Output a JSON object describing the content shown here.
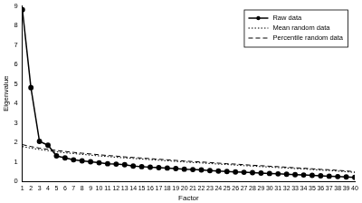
{
  "chart_data": {
    "type": "line",
    "x_label": "Factor",
    "y_label": "Eigenvalue",
    "categories": [
      1,
      2,
      3,
      4,
      5,
      6,
      7,
      8,
      9,
      10,
      11,
      12,
      13,
      14,
      15,
      16,
      17,
      18,
      19,
      20,
      21,
      22,
      23,
      24,
      25,
      26,
      27,
      28,
      29,
      30,
      31,
      32,
      33,
      34,
      35,
      36,
      37,
      38,
      39,
      40
    ],
    "series": [
      {
        "name": "Raw data",
        "color": "#000000",
        "marker": "circle",
        "line_style": "solid",
        "values": [
          8.8,
          4.8,
          2.05,
          1.85,
          1.3,
          1.2,
          1.1,
          1.05,
          1.0,
          0.95,
          0.9,
          0.88,
          0.85,
          0.78,
          0.75,
          0.72,
          0.7,
          0.68,
          0.65,
          0.62,
          0.6,
          0.58,
          0.55,
          0.52,
          0.5,
          0.48,
          0.46,
          0.44,
          0.42,
          0.4,
          0.38,
          0.36,
          0.34,
          0.32,
          0.3,
          0.28,
          0.26,
          0.24,
          0.22,
          0.2
        ]
      },
      {
        "name": "Mean random data",
        "color": "#000000",
        "marker": "none",
        "line_style": "dotted",
        "values": [
          1.78,
          1.7,
          1.63,
          1.57,
          1.51,
          1.46,
          1.42,
          1.38,
          1.34,
          1.3,
          1.27,
          1.23,
          1.2,
          1.17,
          1.14,
          1.11,
          1.08,
          1.05,
          1.02,
          0.99,
          0.96,
          0.94,
          0.91,
          0.88,
          0.86,
          0.83,
          0.8,
          0.78,
          0.75,
          0.73,
          0.7,
          0.68,
          0.65,
          0.63,
          0.6,
          0.57,
          0.55,
          0.52,
          0.49,
          0.45
        ]
      },
      {
        "name": "Percentile random data",
        "color": "#000000",
        "marker": "none",
        "line_style": "dashed",
        "values": [
          1.88,
          1.78,
          1.7,
          1.64,
          1.58,
          1.53,
          1.48,
          1.44,
          1.4,
          1.36,
          1.32,
          1.29,
          1.25,
          1.22,
          1.19,
          1.16,
          1.13,
          1.1,
          1.07,
          1.04,
          1.01,
          0.99,
          0.96,
          0.93,
          0.9,
          0.88,
          0.85,
          0.82,
          0.8,
          0.77,
          0.75,
          0.72,
          0.69,
          0.67,
          0.64,
          0.61,
          0.59,
          0.56,
          0.53,
          0.49
        ]
      }
    ],
    "ylim": [
      0,
      9
    ],
    "yticks": [
      0,
      1,
      2,
      3,
      4,
      5,
      6,
      7,
      8,
      9
    ],
    "grid": false,
    "legend": "upper right"
  }
}
